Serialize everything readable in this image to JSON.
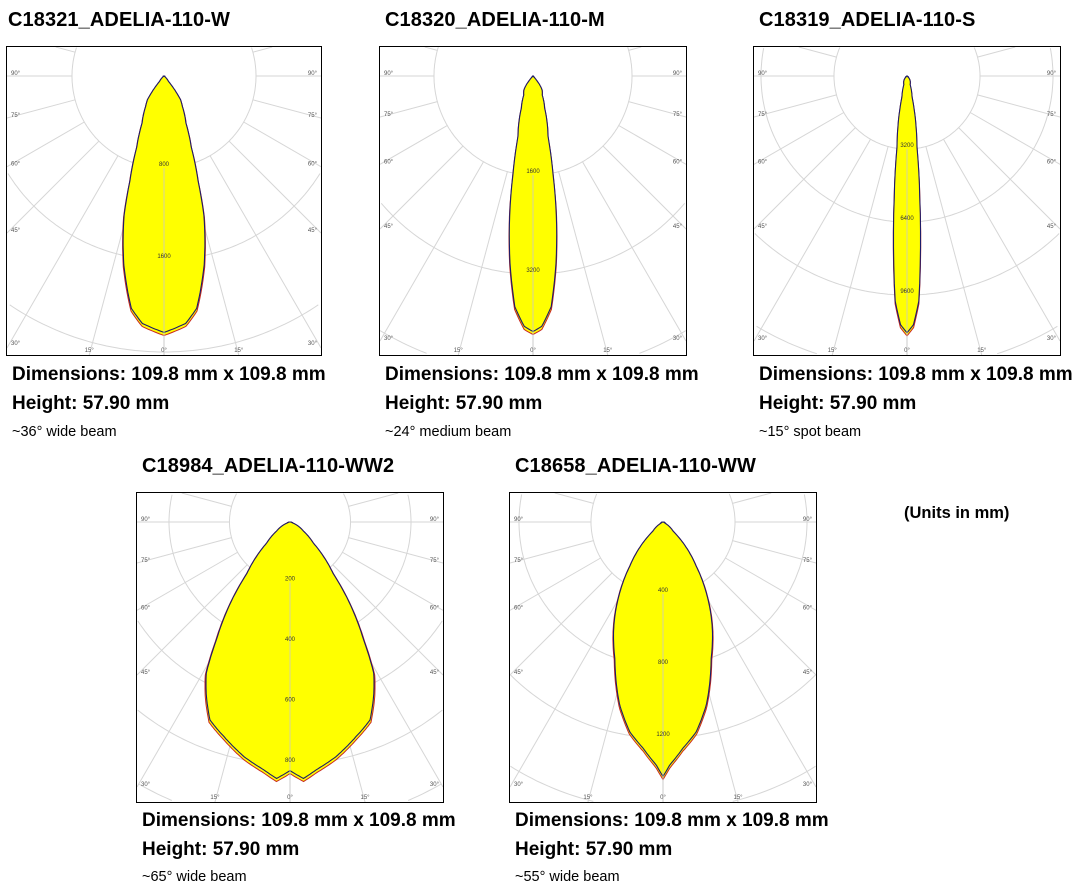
{
  "units_note": "(Units in mm)",
  "colors": {
    "fill": "#ffff00",
    "outline": "#1c1c6a",
    "outline_alt": "#c8281e",
    "grid": "#d6d6d6"
  },
  "charts": [
    {
      "title": "C18321_ADELIA-110-W",
      "dimensions": "Dimensions: 109.8 mm x 109.8 mm",
      "height": "Height: 57.90 mm",
      "beam": "~36° wide beam",
      "chart_data": {
        "type": "polar",
        "rings": [
          "800",
          "1600"
        ],
        "ring_step": 800,
        "angle_labels": {
          "side": [
            "90°",
            "75°",
            "60°",
            "45°",
            "30°"
          ],
          "bottom": [
            "15°",
            "0°",
            "15°"
          ]
        },
        "angles": [
          0,
          5,
          8,
          12,
          16,
          18,
          21,
          25,
          31,
          35,
          40,
          50,
          90
        ],
        "intensity": [
          2230,
          2160,
          2040,
          1680,
          1260,
          960,
          660,
          450,
          310,
          250,
          60,
          10,
          0
        ]
      }
    },
    {
      "title": "C18320_ADELIA-110-M",
      "dimensions": "Dimensions: 109.8 mm x 109.8 mm",
      "height": "Height: 57.90 mm",
      "beam": "~24° medium beam",
      "chart_data": {
        "type": "polar",
        "rings": [
          "1600",
          "3200"
        ],
        "ring_step": 1600,
        "angle_labels": {
          "side": [
            "90°",
            "75°",
            "60°",
            "45°",
            "30°"
          ],
          "bottom": [
            "15°",
            "0°",
            "15°"
          ]
        },
        "angles": [
          0,
          2,
          4.5,
          7,
          9.6,
          11.6,
          14,
          20,
          26,
          33,
          37,
          42,
          50,
          90
        ],
        "intensity": [
          4130,
          4050,
          3740,
          3050,
          2250,
          1600,
          1000,
          550,
          340,
          270,
          180,
          40,
          10,
          0
        ]
      }
    },
    {
      "title": "C18319_ADELIA-110-S",
      "dimensions": "Dimensions: 109.8 mm x 109.8 mm",
      "height": "Height: 57.90 mm",
      "beam": "~15° spot beam",
      "chart_data": {
        "type": "polar",
        "rings": [
          "3200",
          "6400",
          "9600"
        ],
        "ring_step": 3200,
        "angle_labels": {
          "side": [
            "90°",
            "75°",
            "60°",
            "45°",
            "30°"
          ],
          "bottom": [
            "15°",
            "0°",
            "15°"
          ]
        },
        "angles": [
          0,
          1.5,
          3,
          4.5,
          6,
          8,
          10,
          13.6,
          20,
          35,
          45,
          60,
          90
        ],
        "intensity": [
          11260,
          10900,
          9880,
          7540,
          5340,
          3150,
          2300,
          940,
          400,
          230,
          100,
          0,
          0
        ]
      }
    },
    {
      "title": "C18984_ADELIA-110-WW2",
      "dimensions": "Dimensions: 109.8 mm x 109.8 mm",
      "height": "Height: 57.90 mm",
      "beam": "~65° wide beam",
      "chart_data": {
        "type": "polar",
        "rings": [
          "200",
          "400",
          "600",
          "800"
        ],
        "ring_step": 200,
        "angle_labels": {
          "side": [
            "90°",
            "75°",
            "60°",
            "45°",
            "30°"
          ],
          "bottom": [
            "15°",
            "0°",
            "15°"
          ]
        },
        "angles": [
          0,
          3,
          6,
          11,
          17,
          22,
          26,
          29,
          32,
          36,
          40,
          48,
          56,
          70,
          90
        ],
        "intensity": [
          822,
          849,
          824,
          791,
          743,
          706,
          632,
          571,
          459,
          342,
          221,
          103,
          53,
          10,
          0
        ]
      }
    },
    {
      "title": "C18658_ADELIA-110-WW",
      "dimensions": "Dimensions: 109.8 mm x 109.8 mm",
      "height": "Height: 57.90 mm",
      "beam": "~55° wide beam",
      "chart_data": {
        "type": "polar",
        "rings": [
          "400",
          "800",
          "1200"
        ],
        "ring_step": 400,
        "angle_labels": {
          "side": [
            "90°",
            "75°",
            "60°",
            "45°",
            "30°"
          ],
          "bottom": [
            "15°",
            "0°",
            "15°"
          ]
        },
        "angles": [
          0,
          1.6,
          5,
          9,
          13.3,
          19.4,
          25.4,
          31.5,
          37,
          44,
          48,
          60,
          90
        ],
        "intensity": [
          1414,
          1350,
          1262,
          1180,
          1045,
          805,
          636,
          459,
          305,
          159,
          75,
          15,
          0
        ]
      }
    }
  ]
}
